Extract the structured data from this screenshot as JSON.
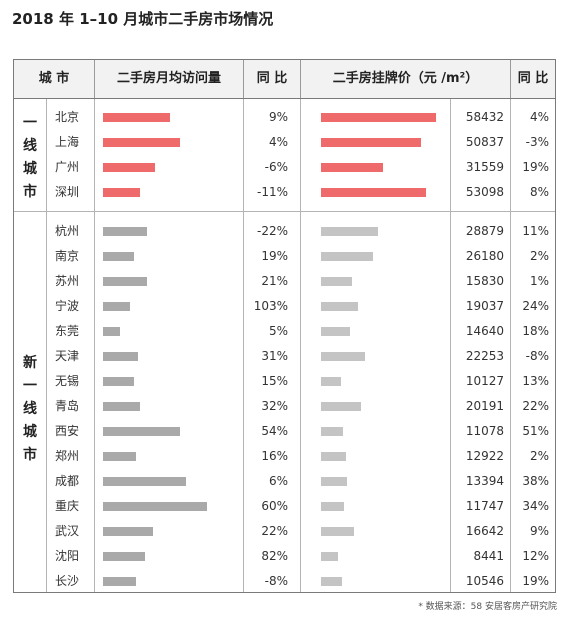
{
  "title": "2018 年 1–10 月城市二手房市场情况",
  "columns": {
    "city": "城 市",
    "visits": "二手房月均访问量",
    "visits_change": "同 比",
    "price": "二手房挂牌价（元 /m²）",
    "price_change": "同 比"
  },
  "groups": [
    {
      "label": "一线城市",
      "rows": [
        {
          "city": "北京",
          "visits_yoy": "9%",
          "price": "58432",
          "price_yoy": "4%"
        },
        {
          "city": "上海",
          "visits_yoy": "4%",
          "price": "50837",
          "price_yoy": "-3%"
        },
        {
          "city": "广州",
          "visits_yoy": "-6%",
          "price": "31559",
          "price_yoy": "19%"
        },
        {
          "city": "深圳",
          "visits_yoy": "-11%",
          "price": "53098",
          "price_yoy": "8%"
        }
      ]
    },
    {
      "label": "新一线城市",
      "rows": [
        {
          "city": "杭州",
          "visits_yoy": "-22%",
          "price": "28879",
          "price_yoy": "11%"
        },
        {
          "city": "南京",
          "visits_yoy": "19%",
          "price": "26180",
          "price_yoy": "2%"
        },
        {
          "city": "苏州",
          "visits_yoy": "21%",
          "price": "15830",
          "price_yoy": "1%"
        },
        {
          "city": "宁波",
          "visits_yoy": "103%",
          "price": "19037",
          "price_yoy": "24%"
        },
        {
          "city": "东莞",
          "visits_yoy": "5%",
          "price": "14640",
          "price_yoy": "18%"
        },
        {
          "city": "天津",
          "visits_yoy": "31%",
          "price": "22253",
          "price_yoy": "-8%"
        },
        {
          "city": "无锡",
          "visits_yoy": "15%",
          "price": "10127",
          "price_yoy": "13%"
        },
        {
          "city": "青岛",
          "visits_yoy": "32%",
          "price": "20191",
          "price_yoy": "22%"
        },
        {
          "city": "西安",
          "visits_yoy": "54%",
          "price": "11078",
          "price_yoy": "51%"
        },
        {
          "city": "郑州",
          "visits_yoy": "16%",
          "price": "12922",
          "price_yoy": "2%"
        },
        {
          "city": "成都",
          "visits_yoy": "6%",
          "price": "13394",
          "price_yoy": "38%"
        },
        {
          "city": "重庆",
          "visits_yoy": "60%",
          "price": "11747",
          "price_yoy": "34%"
        },
        {
          "city": "武汉",
          "visits_yoy": "22%",
          "price": "16642",
          "price_yoy": "9%"
        },
        {
          "city": "沈阳",
          "visits_yoy": "82%",
          "price": "8441",
          "price_yoy": "12%"
        },
        {
          "city": "长沙",
          "visits_yoy": "-8%",
          "price": "10546",
          "price_yoy": "19%"
        }
      ]
    }
  ],
  "visits_bar_levels": [
    0.64,
    0.74,
    0.5,
    0.36,
    0.42,
    0.3,
    0.42,
    0.26,
    0.16,
    0.34,
    0.3,
    0.36,
    0.74,
    0.32,
    0.8,
    1.0,
    0.48,
    0.4,
    0.32
  ],
  "colors": {
    "tier1_bar": "#ef6b6b",
    "visits_bar": "#a9a9a9",
    "price_bar": "#c4c4c4"
  },
  "source": "* 数据来源：58 安居客房产研究院"
}
